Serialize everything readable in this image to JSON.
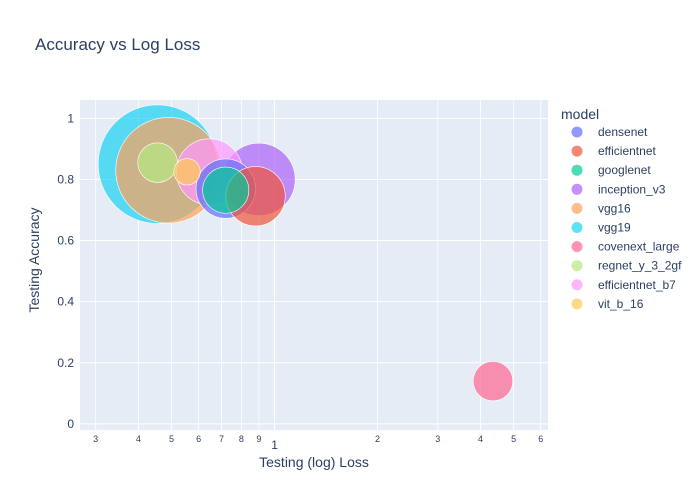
{
  "chart_data": {
    "type": "scatter",
    "title": "Accuracy vs Log Loss",
    "xlabel": "Testing (log) Loss",
    "ylabel": "Testing Accuracy",
    "xscale": "log",
    "xlim": [
      0.27,
      6.3
    ],
    "ylim": [
      -0.02,
      1.06
    ],
    "y_ticks": [
      "0",
      "0.2",
      "0.4",
      "0.6",
      "0.8",
      "1"
    ],
    "x_tick_labels": {
      "minor_first_decade": [
        "3",
        "4",
        "5",
        "6",
        "7",
        "8",
        "9"
      ],
      "major": "1",
      "minor_second_decade": [
        "2",
        "3",
        "4",
        "5",
        "6"
      ]
    },
    "legend_title": "model",
    "legend_position": "right",
    "gridlines": true,
    "series": [
      {
        "name": "densenet",
        "color": "#636efa",
        "points": [
          {
            "x": 0.72,
            "y": 0.77,
            "size": 9
          }
        ]
      },
      {
        "name": "efficientnet",
        "color": "#EF553B",
        "points": [
          {
            "x": 0.88,
            "y": 0.745,
            "size": 9
          }
        ]
      },
      {
        "name": "googlenet",
        "color": "#00cc96",
        "points": [
          {
            "x": 0.72,
            "y": 0.765,
            "size": 7
          }
        ]
      },
      {
        "name": "inception_v3",
        "color": "#ab63fa",
        "points": [
          {
            "x": 0.9,
            "y": 0.8,
            "size": 11
          }
        ]
      },
      {
        "name": "vgg16",
        "color": "#FFA15A",
        "points": [
          {
            "x": 0.49,
            "y": 0.83,
            "size": 16
          }
        ]
      },
      {
        "name": "vgg19",
        "color": "#19d3f3",
        "points": [
          {
            "x": 0.455,
            "y": 0.85,
            "size": 18
          }
        ]
      },
      {
        "name": "covenext_large",
        "color": "#FF6692",
        "points": [
          {
            "x": 4.35,
            "y": 0.14,
            "size": 6
          }
        ]
      },
      {
        "name": "regnet_y_3_2gf",
        "color": "#B6E880",
        "points": [
          {
            "x": 0.455,
            "y": 0.855,
            "size": 6
          }
        ]
      },
      {
        "name": "efficientnet_b7",
        "color": "#FF97FF",
        "points": [
          {
            "x": 0.645,
            "y": 0.825,
            "size": 10
          }
        ]
      },
      {
        "name": "vit_b_16",
        "color": "#FECB52",
        "points": [
          {
            "x": 0.555,
            "y": 0.825,
            "size": 4
          }
        ]
      }
    ]
  }
}
